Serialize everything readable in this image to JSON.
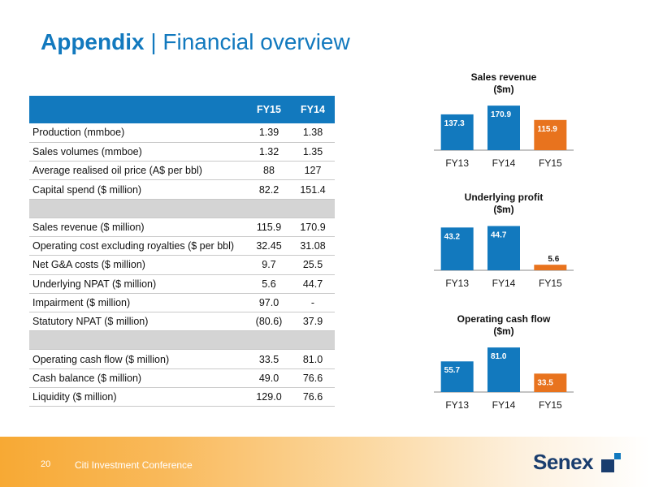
{
  "header": {
    "title_bold": "Appendix",
    "title_sep": "|",
    "title_rest": "Financial overview"
  },
  "table": {
    "columns": [
      "FY15",
      "FY14"
    ],
    "rows": [
      {
        "label": "Production (mmboe)",
        "fy15": "1.39",
        "fy14": "1.38"
      },
      {
        "label": "Sales volumes (mmboe)",
        "fy15": "1.32",
        "fy14": "1.35"
      },
      {
        "label": "Average realised oil price (A$ per bbl)",
        "fy15": "88",
        "fy14": "127"
      },
      {
        "label": "Capital spend ($ million)",
        "fy15": "82.2",
        "fy14": "151.4"
      },
      {
        "label": "Sales revenue ($ million)",
        "fy15": "115.9",
        "fy14": "170.9"
      },
      {
        "label": "Operating cost excluding royalties ($ per bbl)",
        "fy15": "32.45",
        "fy14": "31.08"
      },
      {
        "label": "Net G&A costs ($ million)",
        "fy15": "9.7",
        "fy14": "25.5"
      },
      {
        "label": "Underlying NPAT ($ million)",
        "fy15": "5.6",
        "fy14": "44.7"
      },
      {
        "label": "Impairment ($ million)",
        "fy15": "97.0",
        "fy14": "-"
      },
      {
        "label": "Statutory NPAT ($ million)",
        "fy15": "(80.6)",
        "fy14": "37.9"
      },
      {
        "label": "Operating cash flow ($ million)",
        "fy15": "33.5",
        "fy14": "81.0"
      },
      {
        "label": "Cash balance ($ million)",
        "fy15": "49.0",
        "fy14": "76.6"
      },
      {
        "label": "Liquidity ($ million)",
        "fy15": "129.0",
        "fy14": "76.6"
      }
    ]
  },
  "chart_data": [
    {
      "type": "bar",
      "title": "Sales revenue ($m)",
      "title_line1": "Sales revenue",
      "title_line2": "($m)",
      "categories": [
        "FY13",
        "FY14",
        "FY15"
      ],
      "values": [
        137.3,
        170.9,
        115.9
      ],
      "value_labels": [
        "137.3",
        "170.9",
        "115.9"
      ],
      "colors": [
        "#1279be",
        "#1279be",
        "#e8731e"
      ],
      "xlabel": "",
      "ylabel": "",
      "ylim": [
        0,
        190
      ]
    },
    {
      "type": "bar",
      "title": "Underlying profit ($m)",
      "title_line1": "Underlying profit",
      "title_line2": "($m)",
      "categories": [
        "FY13",
        "FY14",
        "FY15"
      ],
      "values": [
        43.2,
        44.7,
        5.6
      ],
      "value_labels": [
        "43.2",
        "44.7",
        "5.6"
      ],
      "colors": [
        "#1279be",
        "#1279be",
        "#e8731e"
      ],
      "xlabel": "",
      "ylabel": "",
      "ylim": [
        0,
        50
      ]
    },
    {
      "type": "bar",
      "title": "Operating cash flow ($m)",
      "title_line1": "Operating cash flow",
      "title_line2": "($m)",
      "categories": [
        "FY13",
        "FY14",
        "FY15"
      ],
      "values": [
        55.7,
        81.0,
        33.5
      ],
      "value_labels": [
        "55.7",
        "81.0",
        "33.5"
      ],
      "colors": [
        "#1279be",
        "#1279be",
        "#e8731e"
      ],
      "xlabel": "",
      "ylabel": "",
      "ylim": [
        0,
        90
      ]
    }
  ],
  "footer": {
    "page_number": "20",
    "conference": "Citi Investment Conference",
    "logo_text": "Senex"
  },
  "colors": {
    "primary": "#1279be",
    "accent": "#e8731e",
    "brand_dark": "#1a3d6e"
  }
}
